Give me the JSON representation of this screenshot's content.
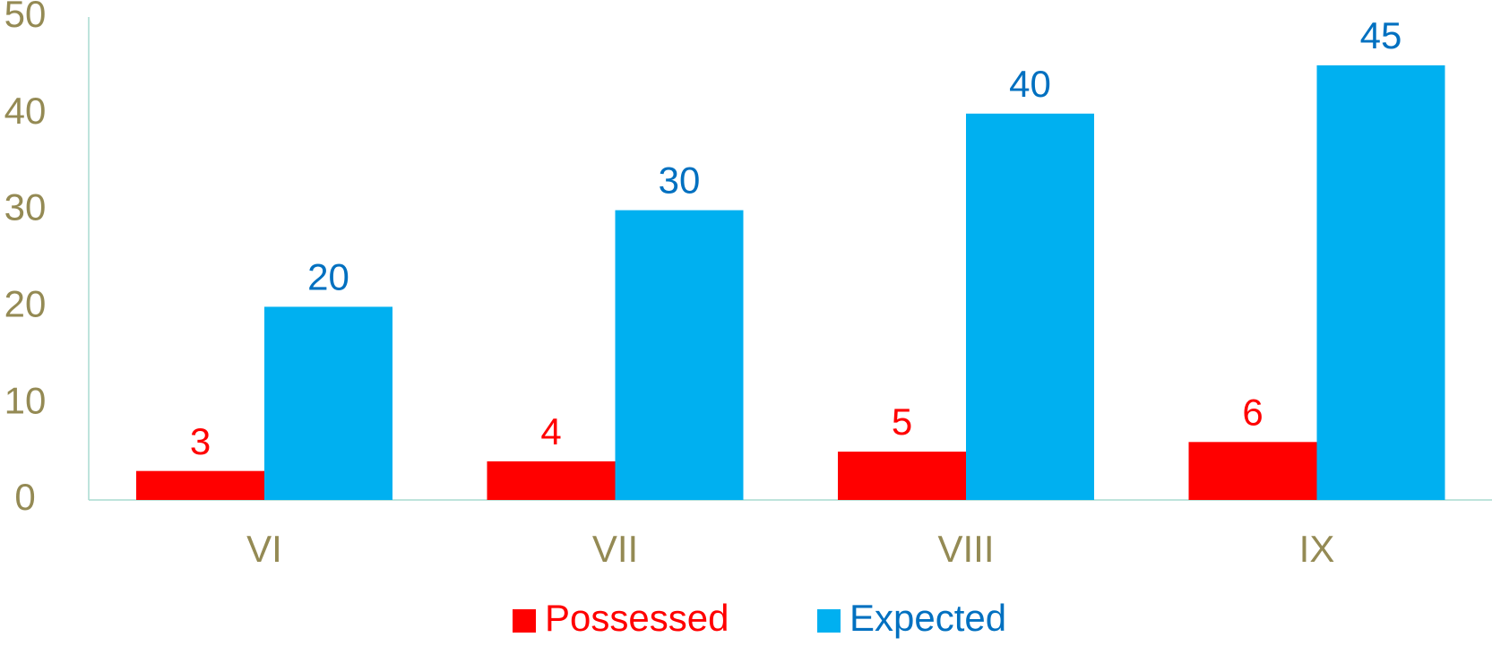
{
  "chart_data": {
    "type": "bar",
    "categories": [
      "VI",
      "VII",
      "VIII",
      "IX"
    ],
    "series": [
      {
        "name": "Possessed",
        "color": "#ff0000",
        "label_color": "#ff0000",
        "values": [
          3,
          4,
          5,
          6
        ]
      },
      {
        "name": "Expected",
        "color": "#00b0f0",
        "label_color": "#0070c0",
        "values": [
          20,
          30,
          40,
          45
        ]
      }
    ],
    "ylim": [
      0,
      50
    ],
    "yticks": [
      0,
      10,
      20,
      30,
      40,
      50
    ],
    "grid": false,
    "legend": "bottom",
    "axis_color": "#a8dcd0",
    "tick_color": "#948a54"
  }
}
